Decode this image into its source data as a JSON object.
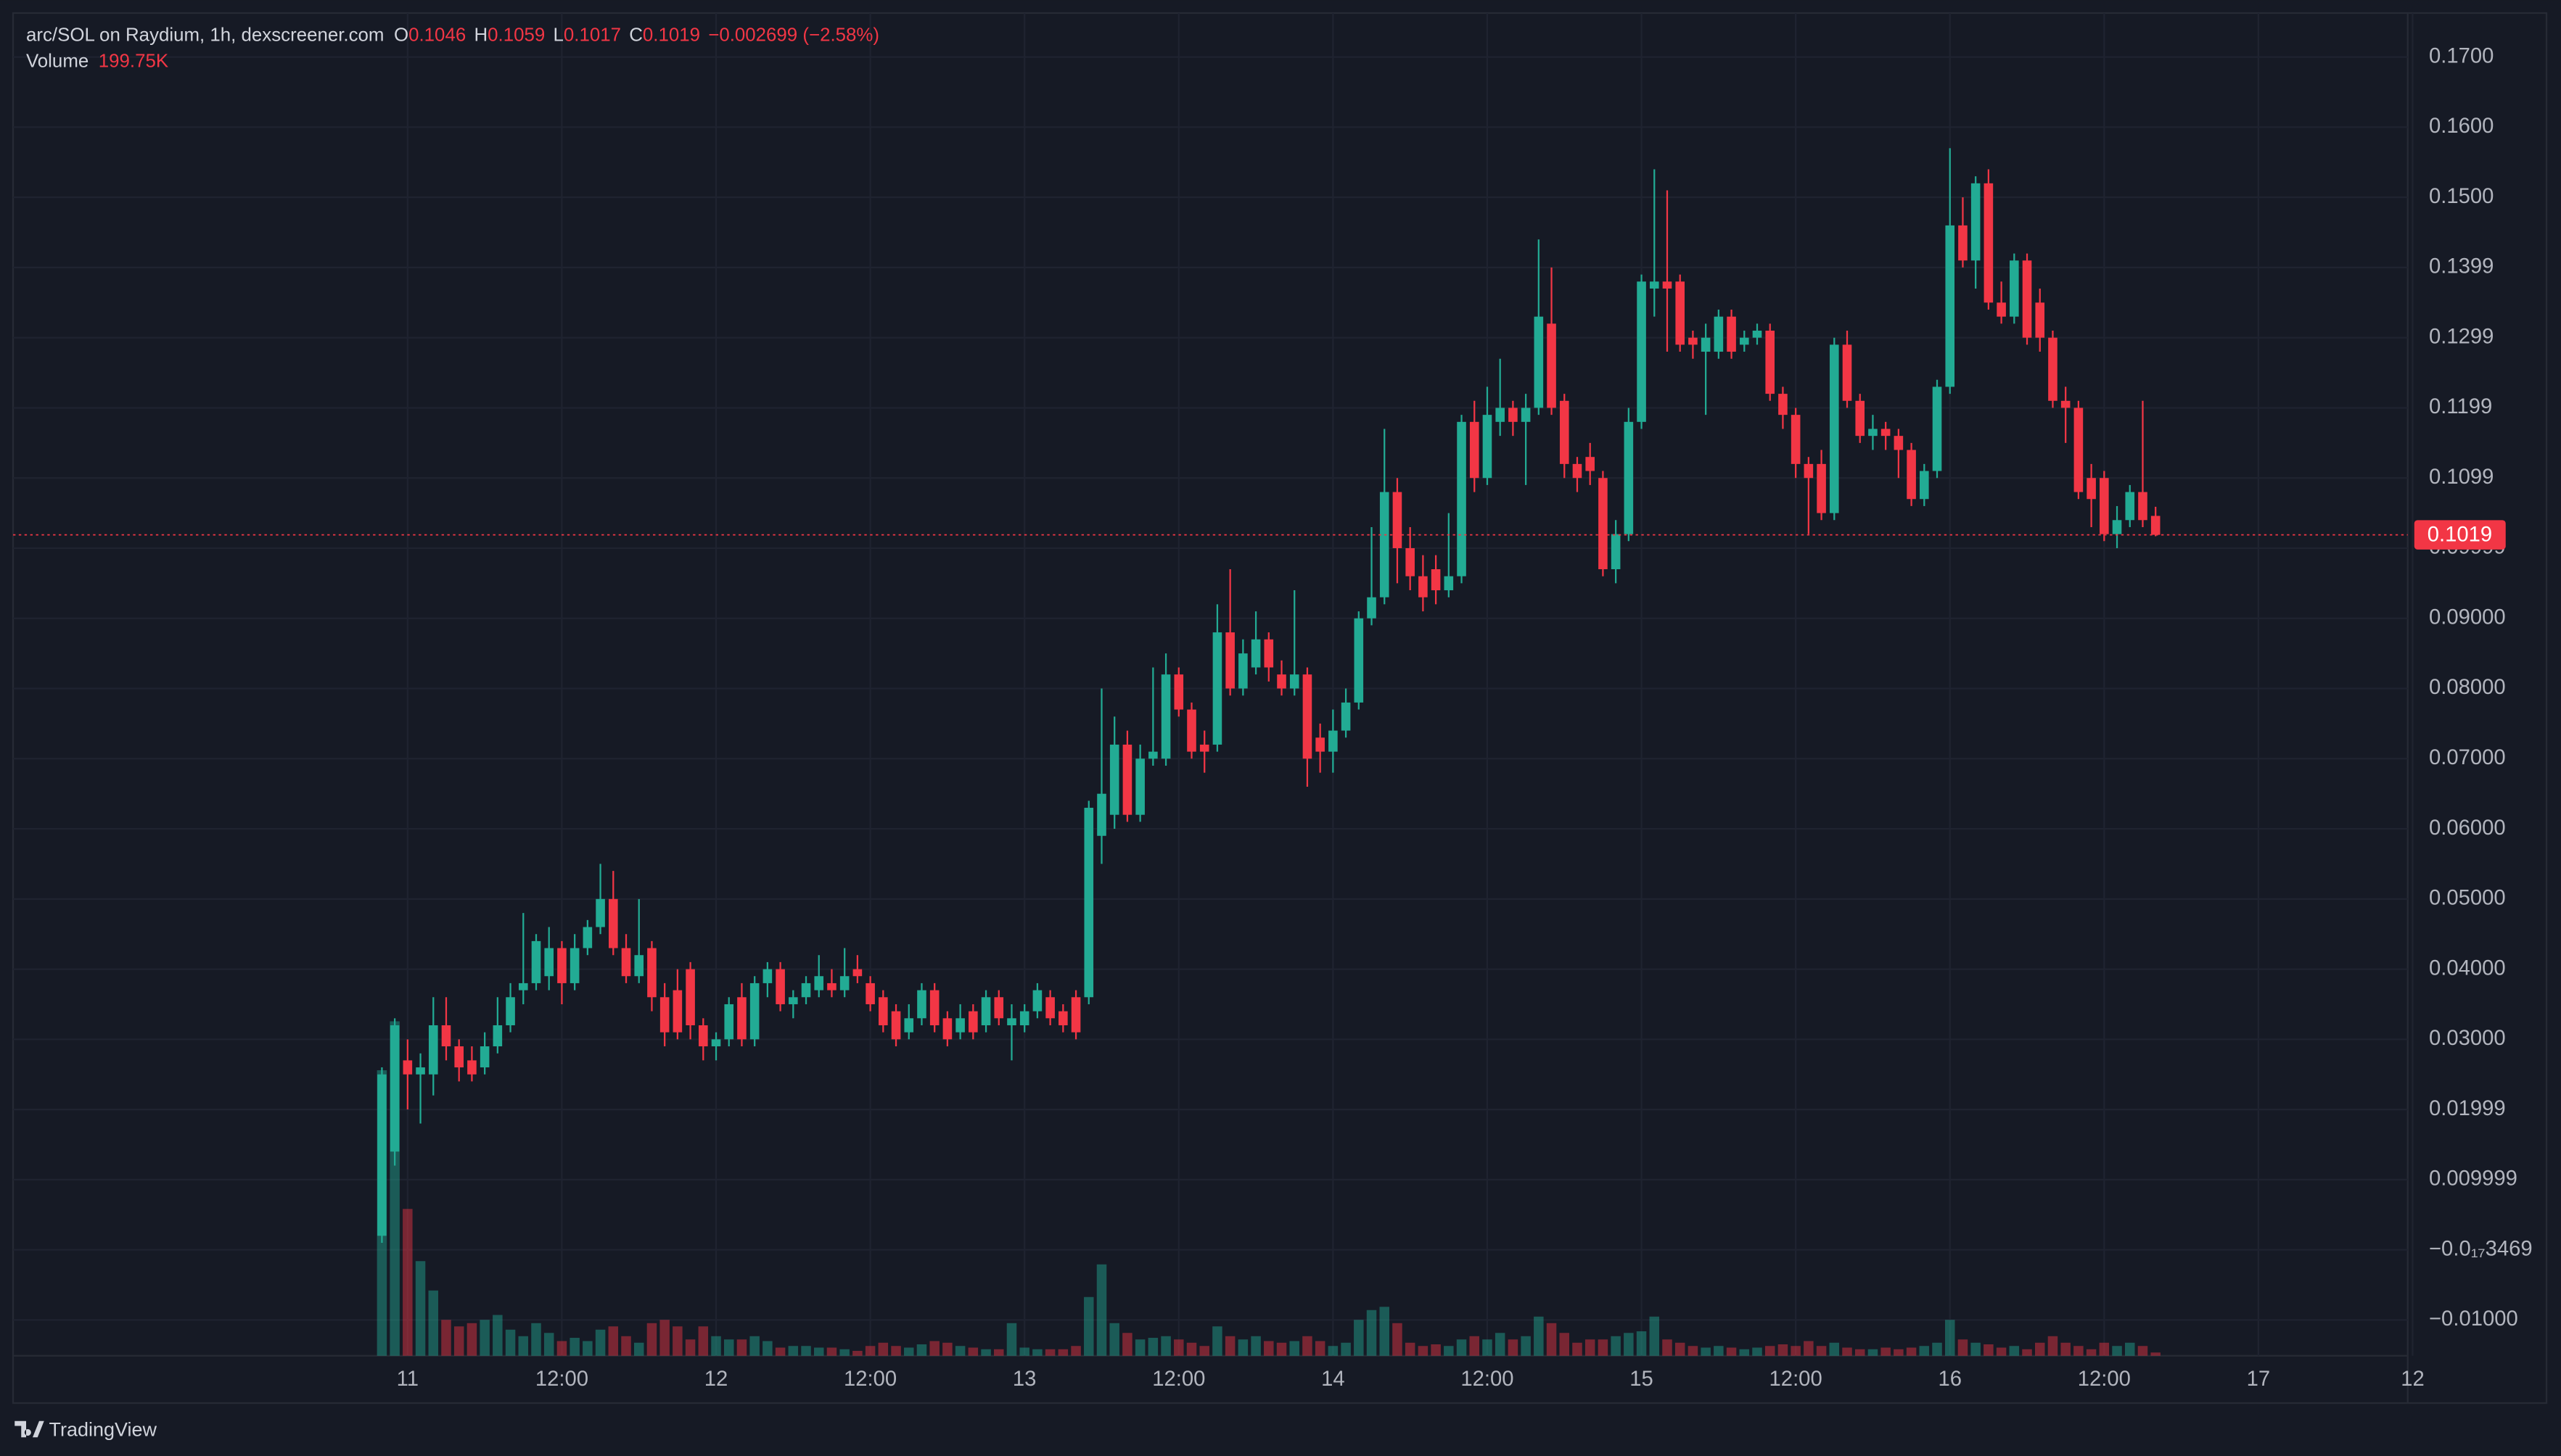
{
  "brand": "TradingView",
  "chart_data": {
    "type": "candlestick",
    "title": "arc/SOL on Raydium, 1h, dexscreener.com",
    "ohlc_keys": [
      "O",
      "H",
      "L",
      "C"
    ],
    "change_label": "−0.002699 (−2.58%)",
    "volume_title": "Volume",
    "last_volume_label": "199.75K",
    "up_color": "#22ab94",
    "down_color": "#f23645",
    "grid": true,
    "open": [
      0.002,
      0.014,
      0.027,
      0.025,
      0.025,
      0.032,
      0.029,
      0.027,
      0.026,
      0.029,
      0.032,
      0.037,
      0.038,
      0.039,
      0.043,
      0.038,
      0.043,
      0.046,
      0.05,
      0.043,
      0.039,
      0.043,
      0.036,
      0.037,
      0.04,
      0.032,
      0.029,
      0.03,
      0.036,
      0.03,
      0.038,
      0.04,
      0.035,
      0.036,
      0.037,
      0.038,
      0.037,
      0.04,
      0.038,
      0.036,
      0.034,
      0.031,
      0.033,
      0.037,
      0.033,
      0.031,
      0.034,
      0.032,
      0.036,
      0.032,
      0.032,
      0.034,
      0.036,
      0.034,
      0.036,
      0.036,
      0.059,
      0.062,
      0.072,
      0.062,
      0.07,
      0.07,
      0.082,
      0.077,
      0.072,
      0.072,
      0.088,
      0.08,
      0.083,
      0.087,
      0.082,
      0.08,
      0.082,
      0.073,
      0.071,
      0.074,
      0.078,
      0.09,
      0.093,
      0.108,
      0.1,
      0.096,
      0.097,
      0.094,
      0.096,
      0.118,
      0.11,
      0.118,
      0.12,
      0.118,
      0.12,
      0.132,
      0.121,
      0.112,
      0.113,
      0.11,
      0.097,
      0.102,
      0.118,
      0.137,
      0.138,
      0.138,
      0.13,
      0.128,
      0.128,
      0.133,
      0.129,
      0.13,
      0.131,
      0.122,
      0.119,
      0.112,
      0.112,
      0.105,
      0.129,
      0.121,
      0.116,
      0.117,
      0.116,
      0.114,
      0.107,
      0.111,
      0.123,
      0.146,
      0.141,
      0.152,
      0.135,
      0.133,
      0.141,
      0.135,
      0.13,
      0.121,
      0.12,
      0.11,
      0.11,
      0.102,
      0.104,
      0.108,
      0.1046
    ],
    "high": [
      0.026,
      0.033,
      0.03,
      0.028,
      0.036,
      0.036,
      0.03,
      0.029,
      0.031,
      0.036,
      0.038,
      0.048,
      0.045,
      0.046,
      0.044,
      0.045,
      0.047,
      0.055,
      0.054,
      0.045,
      0.05,
      0.044,
      0.038,
      0.04,
      0.041,
      0.033,
      0.031,
      0.036,
      0.038,
      0.039,
      0.041,
      0.041,
      0.037,
      0.039,
      0.042,
      0.04,
      0.043,
      0.042,
      0.039,
      0.037,
      0.035,
      0.035,
      0.038,
      0.038,
      0.034,
      0.035,
      0.035,
      0.037,
      0.037,
      0.035,
      0.035,
      0.038,
      0.037,
      0.035,
      0.037,
      0.064,
      0.08,
      0.076,
      0.074,
      0.072,
      0.083,
      0.085,
      0.083,
      0.078,
      0.074,
      0.092,
      0.097,
      0.087,
      0.091,
      0.088,
      0.084,
      0.094,
      0.083,
      0.075,
      0.077,
      0.08,
      0.091,
      0.103,
      0.117,
      0.11,
      0.103,
      0.099,
      0.099,
      0.105,
      0.119,
      0.121,
      0.123,
      0.127,
      0.121,
      0.122,
      0.144,
      0.14,
      0.122,
      0.113,
      0.115,
      0.111,
      0.104,
      0.12,
      0.139,
      0.154,
      0.151,
      0.139,
      0.131,
      0.132,
      0.134,
      0.134,
      0.131,
      0.132,
      0.132,
      0.123,
      0.12,
      0.113,
      0.114,
      0.13,
      0.131,
      0.122,
      0.119,
      0.118,
      0.117,
      0.115,
      0.112,
      0.124,
      0.157,
      0.15,
      0.153,
      0.154,
      0.138,
      0.142,
      0.142,
      0.137,
      0.131,
      0.123,
      0.121,
      0.112,
      0.111,
      0.106,
      0.109,
      0.121,
      0.1059
    ],
    "low": [
      0.001,
      0.012,
      0.02,
      0.018,
      0.022,
      0.027,
      0.024,
      0.024,
      0.025,
      0.028,
      0.031,
      0.035,
      0.037,
      0.037,
      0.035,
      0.037,
      0.042,
      0.045,
      0.042,
      0.038,
      0.038,
      0.034,
      0.029,
      0.03,
      0.03,
      0.027,
      0.027,
      0.029,
      0.029,
      0.029,
      0.036,
      0.034,
      0.033,
      0.035,
      0.036,
      0.036,
      0.036,
      0.038,
      0.034,
      0.031,
      0.029,
      0.03,
      0.032,
      0.031,
      0.029,
      0.03,
      0.03,
      0.031,
      0.032,
      0.027,
      0.031,
      0.033,
      0.032,
      0.031,
      0.03,
      0.035,
      0.055,
      0.06,
      0.061,
      0.061,
      0.069,
      0.069,
      0.076,
      0.07,
      0.068,
      0.071,
      0.079,
      0.079,
      0.082,
      0.081,
      0.079,
      0.079,
      0.066,
      0.068,
      0.068,
      0.073,
      0.077,
      0.089,
      0.092,
      0.095,
      0.094,
      0.091,
      0.092,
      0.093,
      0.095,
      0.108,
      0.109,
      0.116,
      0.116,
      0.109,
      0.119,
      0.119,
      0.11,
      0.108,
      0.109,
      0.096,
      0.095,
      0.101,
      0.117,
      0.133,
      0.128,
      0.128,
      0.127,
      0.119,
      0.127,
      0.127,
      0.128,
      0.129,
      0.121,
      0.117,
      0.11,
      0.102,
      0.104,
      0.104,
      0.12,
      0.115,
      0.114,
      0.114,
      0.11,
      0.106,
      0.106,
      0.11,
      0.122,
      0.14,
      0.137,
      0.134,
      0.132,
      0.132,
      0.129,
      0.128,
      0.12,
      0.115,
      0.107,
      0.103,
      0.101,
      0.1,
      0.103,
      0.103,
      0.1017
    ],
    "close": [
      0.025,
      0.032,
      0.025,
      0.026,
      0.032,
      0.029,
      0.026,
      0.025,
      0.029,
      0.032,
      0.036,
      0.038,
      0.044,
      0.043,
      0.038,
      0.043,
      0.046,
      0.05,
      0.043,
      0.039,
      0.042,
      0.036,
      0.031,
      0.031,
      0.032,
      0.029,
      0.03,
      0.035,
      0.03,
      0.038,
      0.04,
      0.035,
      0.036,
      0.038,
      0.039,
      0.037,
      0.039,
      0.039,
      0.035,
      0.032,
      0.03,
      0.033,
      0.037,
      0.032,
      0.03,
      0.033,
      0.031,
      0.036,
      0.033,
      0.033,
      0.034,
      0.037,
      0.033,
      0.032,
      0.031,
      0.063,
      0.065,
      0.072,
      0.062,
      0.07,
      0.071,
      0.082,
      0.077,
      0.071,
      0.071,
      0.088,
      0.08,
      0.085,
      0.087,
      0.083,
      0.08,
      0.082,
      0.07,
      0.071,
      0.074,
      0.078,
      0.09,
      0.093,
      0.108,
      0.1,
      0.096,
      0.093,
      0.094,
      0.096,
      0.118,
      0.11,
      0.119,
      0.12,
      0.118,
      0.12,
      0.133,
      0.12,
      0.112,
      0.11,
      0.111,
      0.097,
      0.102,
      0.118,
      0.138,
      0.138,
      0.137,
      0.129,
      0.129,
      0.13,
      0.133,
      0.128,
      0.13,
      0.131,
      0.122,
      0.119,
      0.112,
      0.11,
      0.105,
      0.129,
      0.121,
      0.116,
      0.117,
      0.116,
      0.114,
      0.107,
      0.111,
      0.123,
      0.146,
      0.141,
      0.152,
      0.135,
      0.133,
      0.141,
      0.13,
      0.13,
      0.121,
      0.12,
      0.108,
      0.107,
      0.102,
      0.104,
      0.108,
      0.104,
      0.1019
    ],
    "volume": [
      17500000,
      20500000,
      9000000,
      5800000,
      4000000,
      2200000,
      1800000,
      2000000,
      2200000,
      2500000,
      1600000,
      1200000,
      2000000,
      1400000,
      900000,
      1100000,
      900000,
      1600000,
      1800000,
      1200000,
      800000,
      2000000,
      2200000,
      1800000,
      1000000,
      1800000,
      1200000,
      1000000,
      1000000,
      1200000,
      900000,
      500000,
      600000,
      600000,
      500000,
      500000,
      400000,
      300000,
      600000,
      800000,
      600000,
      500000,
      700000,
      900000,
      800000,
      600000,
      500000,
      400000,
      400000,
      2000000,
      500000,
      400000,
      400000,
      400000,
      600000,
      3600000,
      5600000,
      2000000,
      1400000,
      1000000,
      1100000,
      1200000,
      1000000,
      800000,
      600000,
      1800000,
      1200000,
      1000000,
      1200000,
      900000,
      800000,
      900000,
      1200000,
      900000,
      600000,
      800000,
      2200000,
      2800000,
      3000000,
      2000000,
      800000,
      600000,
      700000,
      600000,
      1000000,
      1200000,
      1000000,
      1400000,
      1000000,
      1200000,
      2400000,
      2000000,
      1400000,
      800000,
      1000000,
      1000000,
      1200000,
      1400000,
      1500000,
      2400000,
      1000000,
      800000,
      600000,
      500000,
      600000,
      500000,
      400000,
      500000,
      600000,
      700000,
      600000,
      900000,
      600000,
      800000,
      500000,
      400000,
      400000,
      500000,
      400000,
      500000,
      600000,
      800000,
      2200000,
      1000000,
      800000,
      700000,
      500000,
      600000,
      400000,
      800000,
      1200000,
      800000,
      600000,
      400000,
      800000,
      600000,
      800000,
      600000,
      199750
    ],
    "xlim": [
      -28,
      158
    ],
    "xticks": [
      {
        "value": 2,
        "label": "11"
      },
      {
        "value": 14,
        "label": "12:00"
      },
      {
        "value": 26,
        "label": "12"
      },
      {
        "value": 38,
        "label": "12:00"
      },
      {
        "value": 50,
        "label": "13"
      },
      {
        "value": 62,
        "label": "12:00"
      },
      {
        "value": 74,
        "label": "14"
      },
      {
        "value": 86,
        "label": "12:00"
      },
      {
        "value": 98,
        "label": "15"
      },
      {
        "value": 110,
        "label": "12:00"
      },
      {
        "value": 122,
        "label": "16"
      },
      {
        "value": 134,
        "label": "12:00"
      },
      {
        "value": 146,
        "label": "17"
      },
      {
        "value": 158,
        "label": "12"
      }
    ],
    "ylim": [
      -0.0151,
      0.1758
    ],
    "yticks": [
      {
        "value": 0.17,
        "label": "0.1700"
      },
      {
        "value": 0.16,
        "label": "0.1600"
      },
      {
        "value": 0.15,
        "label": "0.1500"
      },
      {
        "value": 0.14,
        "label": "0.1399"
      },
      {
        "value": 0.13,
        "label": "0.1299"
      },
      {
        "value": 0.12,
        "label": "0.1199"
      },
      {
        "value": 0.11,
        "label": "0.1099"
      },
      {
        "value": 0.1,
        "label": "0.09999"
      },
      {
        "value": 0.09,
        "label": "0.09000"
      },
      {
        "value": 0.08,
        "label": "0.08000"
      },
      {
        "value": 0.07,
        "label": "0.07000"
      },
      {
        "value": 0.06,
        "label": "0.06000"
      },
      {
        "value": 0.05,
        "label": "0.05000"
      },
      {
        "value": 0.04,
        "label": "0.04000"
      },
      {
        "value": 0.03,
        "label": "0.03000"
      },
      {
        "value": 0.02,
        "label": "0.01999"
      },
      {
        "value": 0.01,
        "label": "0.009999"
      },
      {
        "value": 0,
        "label": "−0.0₁₇3469"
      },
      {
        "value": -0.01,
        "label": "−0.01000"
      }
    ]
  }
}
